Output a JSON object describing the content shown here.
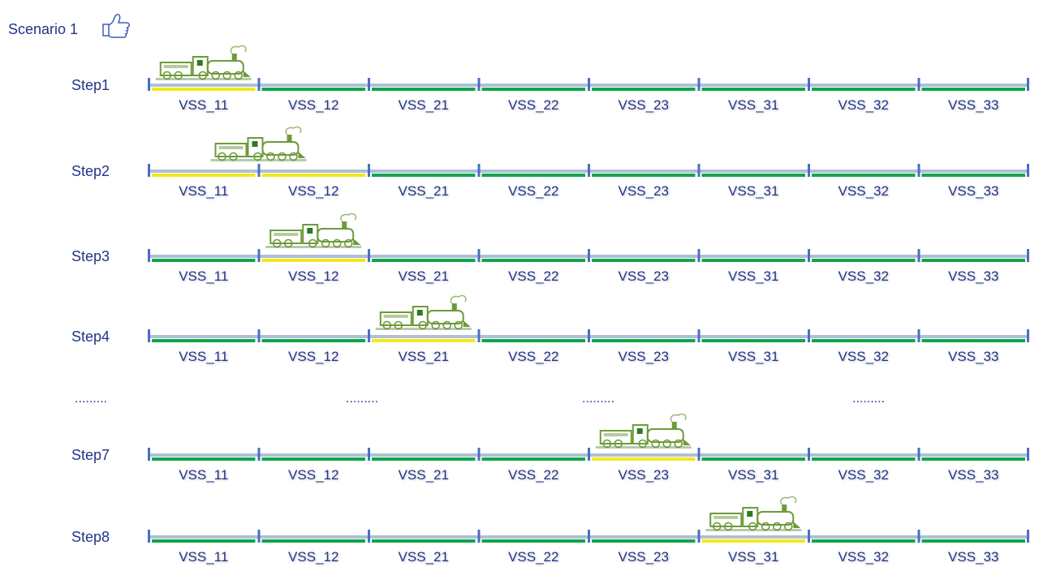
{
  "scenario": {
    "title": "Scenario 1",
    "icon": "thumbs-up-icon"
  },
  "colors": {
    "text": "#22358a",
    "track_rail": "#aebfd9",
    "separator": "#4a6fc4",
    "free": "#10a64a",
    "occupied": "#f4e81a",
    "train": "#6e9a3a"
  },
  "sections": [
    "VSS_11",
    "VSS_12",
    "VSS_21",
    "VSS_22",
    "VSS_23",
    "VSS_31",
    "VSS_32",
    "VSS_33"
  ],
  "steps": [
    {
      "label": "Step1",
      "occupied": [
        "VSS_11"
      ],
      "train_on": "VSS_11"
    },
    {
      "label": "Step2",
      "occupied": [
        "VSS_11",
        "VSS_12"
      ],
      "train_on": "VSS_11/VSS_12"
    },
    {
      "label": "Step3",
      "occupied": [
        "VSS_12"
      ],
      "train_on": "VSS_12"
    },
    {
      "label": "Step4",
      "occupied": [
        "VSS_21"
      ],
      "train_on": "VSS_21"
    },
    {
      "label": "Step7",
      "occupied": [
        "VSS_23"
      ],
      "train_on": "VSS_23"
    },
    {
      "label": "Step8",
      "occupied": [
        "VSS_31"
      ],
      "train_on": "VSS_31"
    }
  ],
  "ellipsis": "........."
}
